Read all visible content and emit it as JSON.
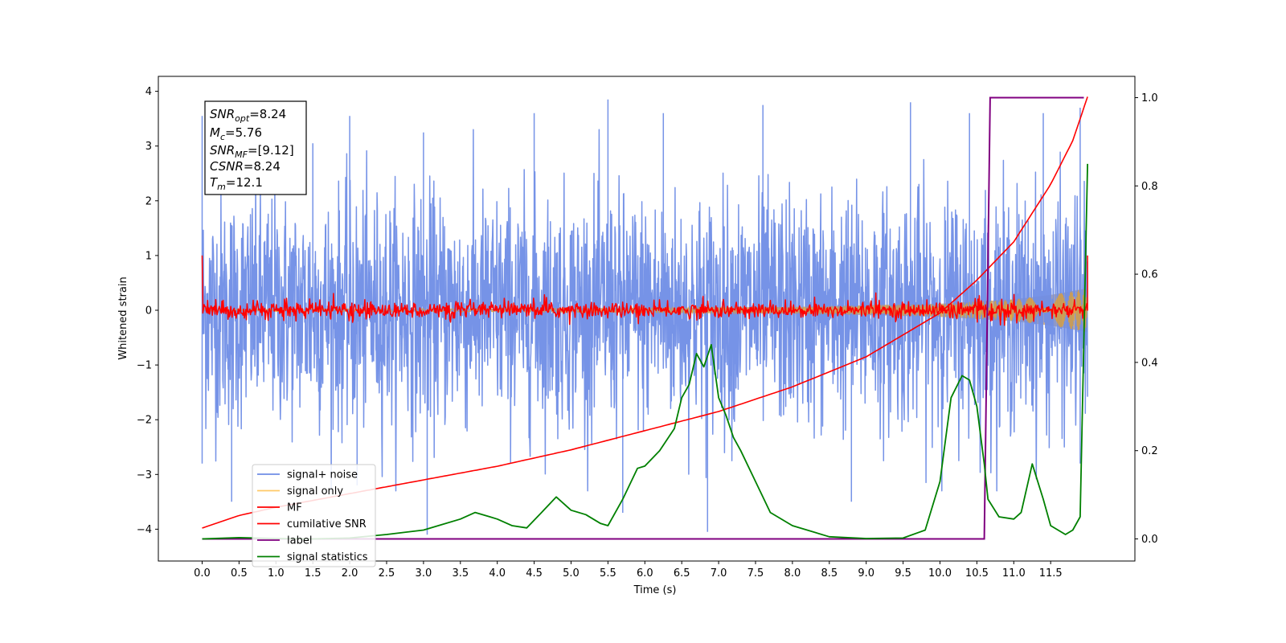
{
  "chart_data": {
    "type": "line",
    "xlabel": "Time (s)",
    "ylabel": "Whitened strain",
    "xlim": [
      -0.6,
      12.6
    ],
    "ylim": [
      -4.6,
      4.3
    ],
    "ylim_right": [
      -0.05,
      1.04
    ],
    "x_ticks": [
      "0.0",
      "0.5",
      "1.0",
      "1.5",
      "2.0",
      "2.5",
      "3.0",
      "3.5",
      "4.0",
      "4.5",
      "5.0",
      "5.5",
      "6.0",
      "6.5",
      "7.0",
      "7.5",
      "8.0",
      "8.5",
      "9.0",
      "9.5",
      "10.0",
      "10.5",
      "11.0",
      "11.5"
    ],
    "y_ticks": [
      "4",
      "3",
      "2",
      "1",
      "0",
      "−1",
      "−2",
      "−3",
      "−4"
    ],
    "y_ticks_right": [
      "1.0",
      "0.8",
      "0.6",
      "0.4",
      "0.2",
      "0.0"
    ],
    "grid": false,
    "legend_position": "lower-left",
    "colors": {
      "noise": "#6f8de6",
      "signal": "#ffa500",
      "mf": "#ff0000",
      "csnr": "#ff0000",
      "label": "#800080",
      "stats": "#008000",
      "band": "#c8a27a"
    },
    "annotation": {
      "line1_main": "SNR",
      "line1_sub": "opt",
      "line1_val": "=8.24",
      "line2_main": "M",
      "line2_sub": "c",
      "line2_val": "=5.76",
      "line3_main": "SNR",
      "line3_sub": "MF",
      "line3_val": "=[9.12]",
      "line4_main": "CSNR",
      "line4_val": "=8.24",
      "line5_main": "T",
      "line5_sub": "m",
      "line5_val": "=12.1"
    },
    "series": [
      {
        "name": "signal+ noise",
        "axis": "left",
        "amplitude_typical": 2.5,
        "peaks": [
          {
            "x": 0.0,
            "y": 3.55
          },
          {
            "x": 0.0,
            "y": -2.8
          },
          {
            "x": 0.4,
            "y": -3.5
          },
          {
            "x": 1.5,
            "y": 3.05
          },
          {
            "x": 2.0,
            "y": 3.55
          },
          {
            "x": 2.1,
            "y": -3.2
          },
          {
            "x": 3.05,
            "y": -4.1
          },
          {
            "x": 3.0,
            "y": 3.25
          },
          {
            "x": 4.5,
            "y": 3.6
          },
          {
            "x": 5.5,
            "y": 3.85
          },
          {
            "x": 5.7,
            "y": -3.7
          },
          {
            "x": 6.25,
            "y": 3.6
          },
          {
            "x": 6.85,
            "y": -4.05
          },
          {
            "x": 7.6,
            "y": 3.75
          },
          {
            "x": 8.8,
            "y": -3.5
          },
          {
            "x": 9.6,
            "y": 3.8
          },
          {
            "x": 10.4,
            "y": 3.6
          },
          {
            "x": 11.4,
            "y": 3.6
          },
          {
            "x": 11.9,
            "y": 3.7
          },
          {
            "x": 11.9,
            "y": -2.8
          }
        ]
      },
      {
        "name": "signal only",
        "axis": "left",
        "envelope": [
          {
            "x": 0.0,
            "a": 0.02
          },
          {
            "x": 4.0,
            "a": 0.03
          },
          {
            "x": 8.0,
            "a": 0.06
          },
          {
            "x": 10.0,
            "a": 0.12
          },
          {
            "x": 11.0,
            "a": 0.2
          },
          {
            "x": 11.5,
            "a": 0.28
          },
          {
            "x": 12.0,
            "a": 0.4
          }
        ]
      },
      {
        "name": "MF",
        "axis": "left",
        "amplitude_typical": 0.12,
        "endpoints": [
          {
            "x": 0.0,
            "y": 1.0
          },
          {
            "x": 0.02,
            "y": -4.05
          },
          {
            "x": 12.0,
            "y": 1.0
          }
        ]
      },
      {
        "name": "cumilative SNR",
        "axis": "left",
        "x": [
          0.0,
          0.5,
          1.0,
          2.0,
          3.0,
          4.0,
          5.0,
          6.0,
          7.0,
          8.0,
          9.0,
          10.0,
          10.5,
          11.0,
          11.5,
          11.8,
          12.0
        ],
        "y": [
          -3.98,
          -3.75,
          -3.6,
          -3.35,
          -3.1,
          -2.85,
          -2.55,
          -2.2,
          -1.85,
          -1.4,
          -0.85,
          -0.05,
          0.55,
          1.25,
          2.3,
          3.1,
          3.9
        ]
      },
      {
        "name": "label",
        "axis": "right",
        "x": [
          0.0,
          10.6,
          10.68,
          11.95
        ],
        "y": [
          0.0,
          0.0,
          1.0,
          1.0
        ]
      },
      {
        "name": "signal statistics",
        "axis": "right",
        "x": [
          0.0,
          0.5,
          1.0,
          1.5,
          2.0,
          2.5,
          3.0,
          3.2,
          3.5,
          3.7,
          3.9,
          4.0,
          4.2,
          4.4,
          4.6,
          4.8,
          4.9,
          5.0,
          5.2,
          5.4,
          5.5,
          5.7,
          5.9,
          6.0,
          6.2,
          6.4,
          6.5,
          6.6,
          6.7,
          6.8,
          6.9,
          7.0,
          7.1,
          7.2,
          7.3,
          7.5,
          7.7,
          8.0,
          8.5,
          9.0,
          9.5,
          9.8,
          10.0,
          10.15,
          10.3,
          10.4,
          10.5,
          10.6,
          10.65,
          10.8,
          11.0,
          11.1,
          11.25,
          11.4,
          11.5,
          11.7,
          11.8,
          11.9,
          11.95,
          12.0
        ],
        "y": [
          0.0,
          0.003,
          0.001,
          0.0,
          0.002,
          0.01,
          0.02,
          0.03,
          0.045,
          0.06,
          0.05,
          0.045,
          0.03,
          0.025,
          0.06,
          0.095,
          0.08,
          0.065,
          0.055,
          0.035,
          0.03,
          0.09,
          0.16,
          0.165,
          0.2,
          0.25,
          0.32,
          0.35,
          0.42,
          0.39,
          0.44,
          0.32,
          0.28,
          0.23,
          0.2,
          0.13,
          0.06,
          0.03,
          0.005,
          0.001,
          0.002,
          0.02,
          0.13,
          0.32,
          0.37,
          0.36,
          0.3,
          0.17,
          0.09,
          0.05,
          0.045,
          0.06,
          0.17,
          0.09,
          0.03,
          0.01,
          0.02,
          0.05,
          0.45,
          0.85
        ]
      }
    ]
  }
}
